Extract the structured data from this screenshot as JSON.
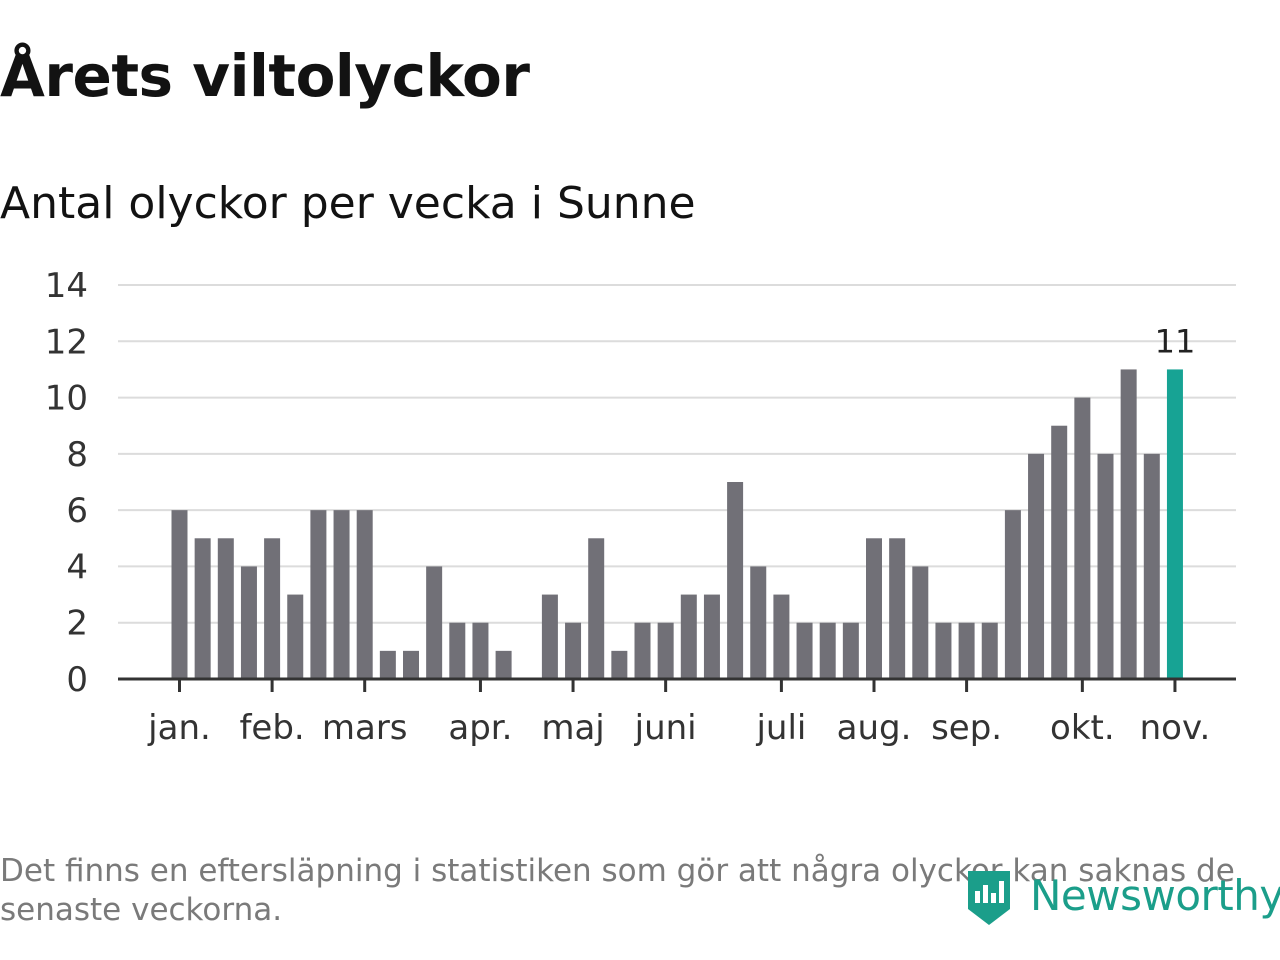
{
  "header": {
    "title": "Årets viltolyckor",
    "subtitle": "Antal olyckor per vecka i Sunne"
  },
  "footnote": "Det finns en eftersläpning i statistiken som gör att några olyckor kan saknas de senaste veckorna.",
  "logo": {
    "text": "Newsworthy",
    "icon": "newsworthy-logo-icon"
  },
  "colors": {
    "bar": "#717077",
    "highlight": "#17a394",
    "grid": "#dcdcdc",
    "axis": "#333333",
    "logo": "#1b9e8a"
  },
  "chart_data": {
    "type": "bar",
    "ylim": [
      0,
      14
    ],
    "yticks": [
      "0",
      "2",
      "4",
      "6",
      "8",
      "10",
      "12",
      "14"
    ],
    "values": [
      6,
      5,
      5,
      4,
      5,
      3,
      6,
      6,
      6,
      1,
      1,
      4,
      2,
      2,
      1,
      0,
      3,
      2,
      5,
      1,
      2,
      2,
      3,
      3,
      7,
      4,
      3,
      2,
      2,
      2,
      5,
      5,
      4,
      2,
      2,
      2,
      6,
      8,
      9,
      10,
      8,
      11,
      8,
      11
    ],
    "month_labels": [
      {
        "label": "jan.",
        "week": 0
      },
      {
        "label": "feb.",
        "week": 4
      },
      {
        "label": "mars",
        "week": 8
      },
      {
        "label": "apr.",
        "week": 13
      },
      {
        "label": "maj",
        "week": 17
      },
      {
        "label": "juni",
        "week": 21
      },
      {
        "label": "juli",
        "week": 26
      },
      {
        "label": "aug.",
        "week": 30
      },
      {
        "label": "sep.",
        "week": 34
      },
      {
        "label": "okt.",
        "week": 39
      },
      {
        "label": "nov.",
        "week": 43
      }
    ],
    "highlight_index": 43,
    "highlight_label": "11",
    "grid": true
  }
}
